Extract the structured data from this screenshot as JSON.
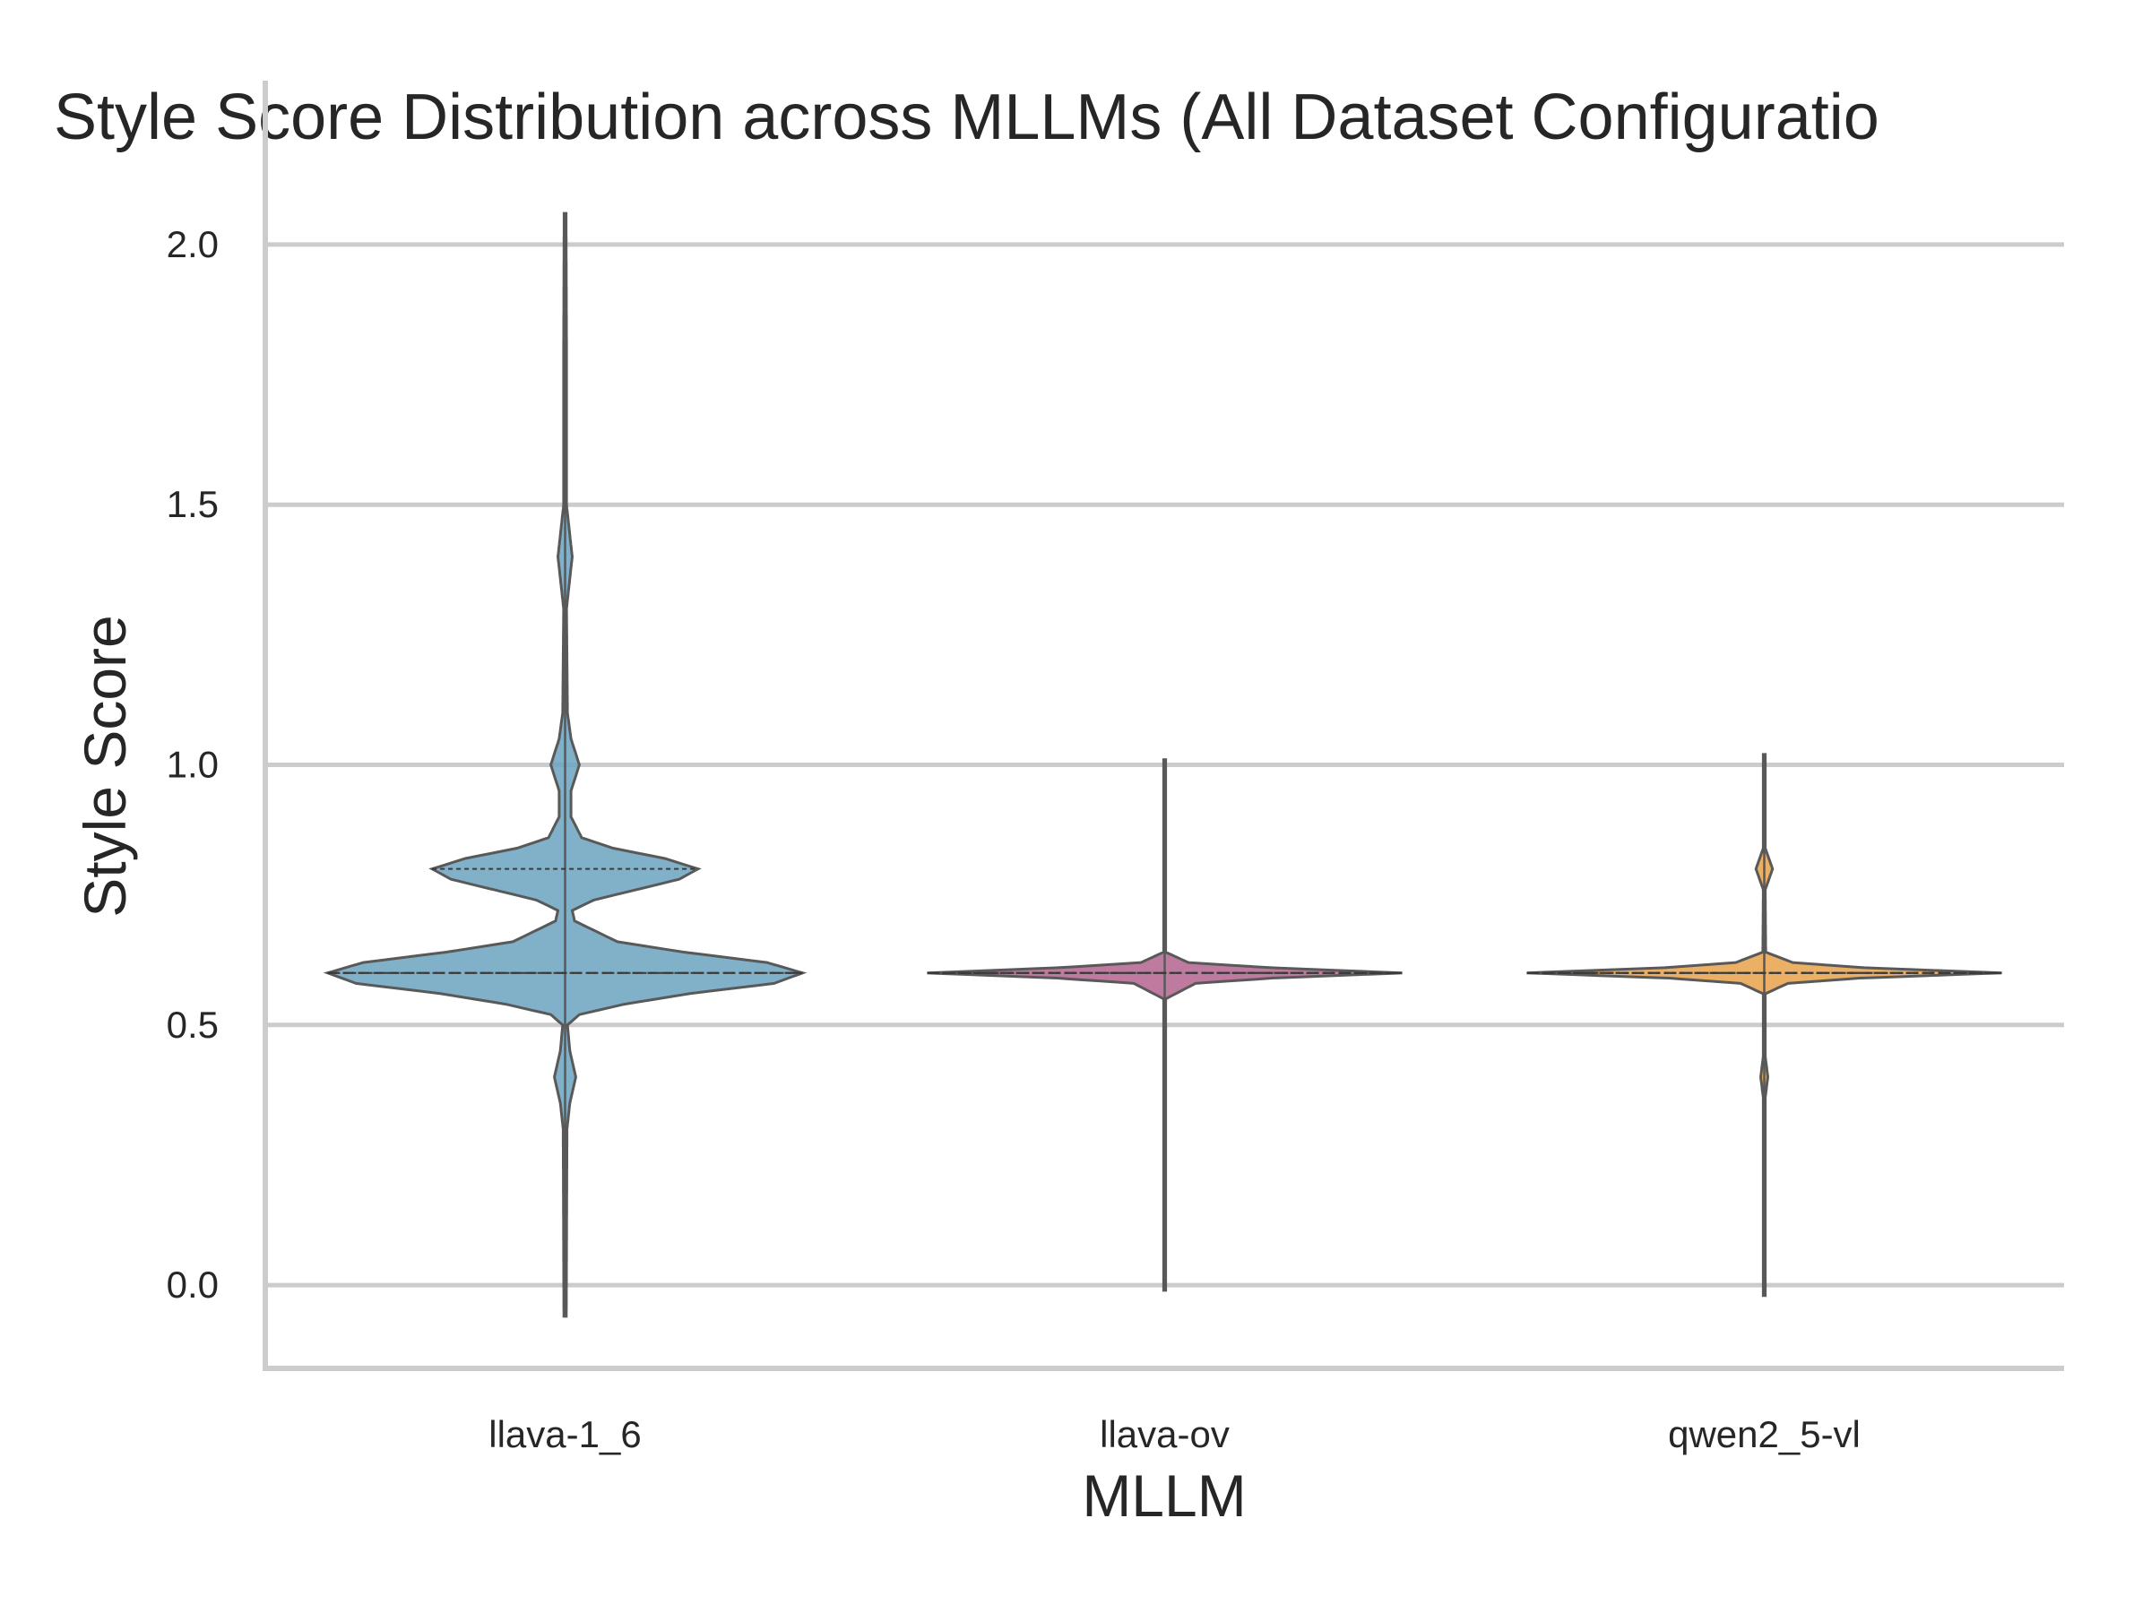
{
  "chart_data": {
    "type": "violin",
    "title": "Style Score Distribution across MLLMs (All Dataset Configuratio",
    "xlabel": "MLLM",
    "ylabel": "Style Score",
    "ylim": [
      -0.16,
      2.16
    ],
    "yticks": [
      0.0,
      0.5,
      1.0,
      1.5,
      2.0
    ],
    "ytick_labels": [
      "0.0",
      "0.5",
      "1.0",
      "1.5",
      "2.0"
    ],
    "grid": true,
    "categories": [
      "llava-1_6",
      "llava-ov",
      "qwen2_5-vl"
    ],
    "series": [
      {
        "category": "llava-1_6",
        "color": "#6aa3bf",
        "range": [
          -0.06,
          2.06
        ],
        "median": 0.6,
        "quartiles": [
          0.6,
          0.8
        ],
        "density": [
          [
            -0.06,
            0.005
          ],
          [
            0.3,
            0.008
          ],
          [
            0.35,
            0.02
          ],
          [
            0.4,
            0.045
          ],
          [
            0.45,
            0.02
          ],
          [
            0.5,
            0.01
          ],
          [
            0.52,
            0.06
          ],
          [
            0.54,
            0.25
          ],
          [
            0.56,
            0.52
          ],
          [
            0.58,
            0.88
          ],
          [
            0.6,
            1.0
          ],
          [
            0.62,
            0.85
          ],
          [
            0.64,
            0.5
          ],
          [
            0.66,
            0.22
          ],
          [
            0.7,
            0.04
          ],
          [
            0.72,
            0.03
          ],
          [
            0.74,
            0.12
          ],
          [
            0.76,
            0.3
          ],
          [
            0.78,
            0.48
          ],
          [
            0.8,
            0.56
          ],
          [
            0.82,
            0.42
          ],
          [
            0.84,
            0.2
          ],
          [
            0.86,
            0.07
          ],
          [
            0.9,
            0.025
          ],
          [
            0.95,
            0.025
          ],
          [
            1.0,
            0.06
          ],
          [
            1.05,
            0.025
          ],
          [
            1.1,
            0.01
          ],
          [
            1.3,
            0.006
          ],
          [
            1.35,
            0.018
          ],
          [
            1.4,
            0.03
          ],
          [
            1.45,
            0.018
          ],
          [
            1.5,
            0.006
          ],
          [
            1.6,
            0.006
          ],
          [
            1.8,
            0.006
          ],
          [
            2.06,
            0.004
          ]
        ]
      },
      {
        "category": "llava-ov",
        "color": "#b4638f",
        "range": [
          -0.01,
          1.01
        ],
        "median": 0.6,
        "quartiles": [
          0.6,
          0.6
        ],
        "density": [
          [
            -0.01,
            0.004
          ],
          [
            0.55,
            0.004
          ],
          [
            0.58,
            0.13
          ],
          [
            0.59,
            0.45
          ],
          [
            0.6,
            1.0
          ],
          [
            0.61,
            0.45
          ],
          [
            0.62,
            0.1
          ],
          [
            0.64,
            0.004
          ],
          [
            1.01,
            0.004
          ]
        ]
      },
      {
        "category": "qwen2_5-vl",
        "color": "#e8a24a",
        "range": [
          -0.02,
          1.02
        ],
        "median": 0.6,
        "quartiles": [
          0.6,
          0.6
        ],
        "density": [
          [
            -0.02,
            0.004
          ],
          [
            0.36,
            0.004
          ],
          [
            0.4,
            0.015
          ],
          [
            0.44,
            0.004
          ],
          [
            0.56,
            0.004
          ],
          [
            0.58,
            0.1
          ],
          [
            0.59,
            0.4
          ],
          [
            0.6,
            1.0
          ],
          [
            0.61,
            0.42
          ],
          [
            0.62,
            0.12
          ],
          [
            0.64,
            0.006
          ],
          [
            0.76,
            0.004
          ],
          [
            0.8,
            0.035
          ],
          [
            0.84,
            0.004
          ],
          [
            1.02,
            0.004
          ]
        ]
      }
    ]
  }
}
